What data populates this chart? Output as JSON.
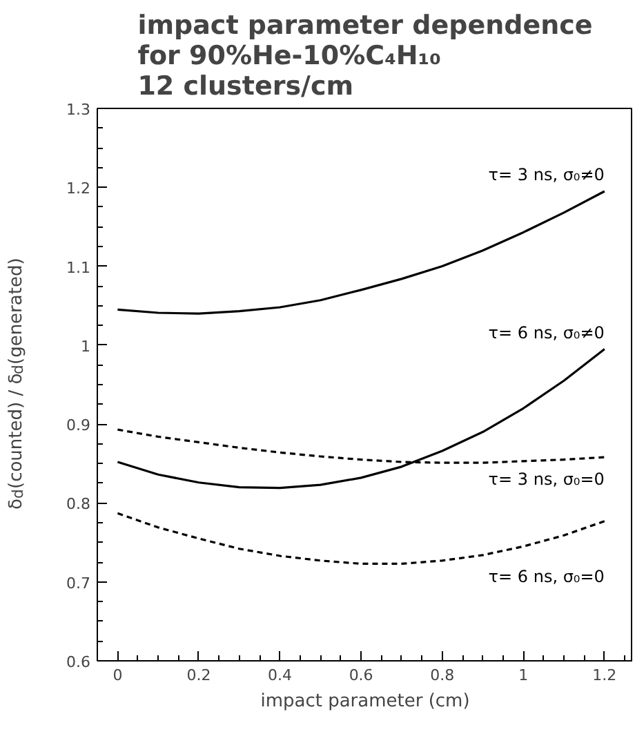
{
  "chart_data": {
    "type": "line",
    "title": "impact parameter dependence\nfor 90%He-10%C₄H₁₀\n12 clusters/cm",
    "xlabel": "impact parameter (cm)",
    "ylabel": "δ$_{d}$(counted) / δ$_{d}$(generated)",
    "xlim": [
      -0.05,
      1.27
    ],
    "ylim": [
      0.6,
      1.3
    ],
    "xticks": [
      0,
      0.2,
      0.4,
      0.6,
      0.8,
      1,
      1.2
    ],
    "yticks": [
      0.6,
      0.7,
      0.8,
      0.9,
      1,
      1.1,
      1.2,
      1.3
    ],
    "grid": false,
    "marker": "none",
    "x": [
      0,
      0.1,
      0.2,
      0.3,
      0.4,
      0.5,
      0.6,
      0.7,
      0.8,
      0.9,
      1.0,
      1.1,
      1.2
    ],
    "series": [
      {
        "name": "τ= 3 ns, σ₀≠0",
        "color": "#000000",
        "line_style": "solid",
        "values": [
          1.045,
          1.041,
          1.04,
          1.043,
          1.048,
          1.057,
          1.07,
          1.084,
          1.1,
          1.12,
          1.143,
          1.168,
          1.195
        ]
      },
      {
        "name": "τ= 6 ns, σ₀≠0",
        "color": "#000000",
        "line_style": "solid",
        "values": [
          0.852,
          0.836,
          0.826,
          0.82,
          0.819,
          0.823,
          0.832,
          0.846,
          0.866,
          0.89,
          0.92,
          0.955,
          0.995
        ]
      },
      {
        "name": "τ= 3 ns, σ₀=0",
        "color": "#000000",
        "line_style": "dashed",
        "values": [
          0.893,
          0.884,
          0.877,
          0.87,
          0.864,
          0.859,
          0.855,
          0.852,
          0.851,
          0.851,
          0.853,
          0.855,
          0.858
        ]
      },
      {
        "name": "τ= 6 ns, σ₀=0",
        "color": "#000000",
        "line_style": "dashed",
        "values": [
          0.787,
          0.769,
          0.755,
          0.742,
          0.733,
          0.727,
          0.723,
          0.723,
          0.727,
          0.734,
          0.745,
          0.759,
          0.777
        ]
      }
    ]
  }
}
